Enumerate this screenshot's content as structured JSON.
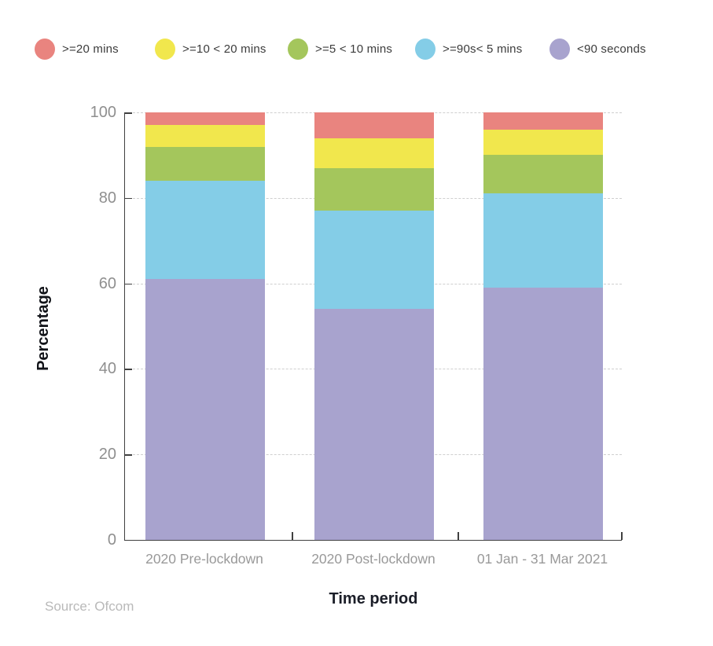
{
  "chart_data": {
    "type": "bar",
    "variant": "stacked-vertical",
    "title": "",
    "xlabel": "Time period",
    "ylabel": "Percentage",
    "ylim": [
      0,
      100
    ],
    "yticks": [
      0,
      20,
      40,
      60,
      80,
      100
    ],
    "grid": "dashed-horizontal",
    "legend_position": "top",
    "categories": [
      "2020 Pre-lockdown",
      "2020 Post-lockdown",
      "01 Jan - 31 Mar 2021"
    ],
    "series": [
      {
        "name": ">=20 mins",
        "color": "#e9847f",
        "values": [
          3,
          6,
          4
        ]
      },
      {
        "name": ">=10 < 20 mins",
        "color": "#f1e74d",
        "values": [
          5,
          7,
          6
        ]
      },
      {
        "name": ">=5 < 10 mins",
        "color": "#a4c65c",
        "values": [
          8,
          10,
          9
        ]
      },
      {
        "name": ">=90s< 5 mins",
        "color": "#84cde7",
        "values": [
          23,
          23,
          22
        ]
      },
      {
        "name": "<90 seconds",
        "color": "#a8a3ce",
        "values": [
          61,
          54,
          59
        ]
      }
    ],
    "stack_note": "segments stacked bottom-up in reverse series order (<90 seconds at bottom, >=20 mins on top)"
  },
  "footer": {
    "source": "Source: Ofcom"
  },
  "style_colors": {
    "axis_line": "#404040",
    "gridline": "#cfcfcf",
    "tick_label": "#8f8f8f",
    "legend_text": "#3c3c3c",
    "axis_title_text": "#14161f",
    "source_text": "#b9b9b9"
  }
}
